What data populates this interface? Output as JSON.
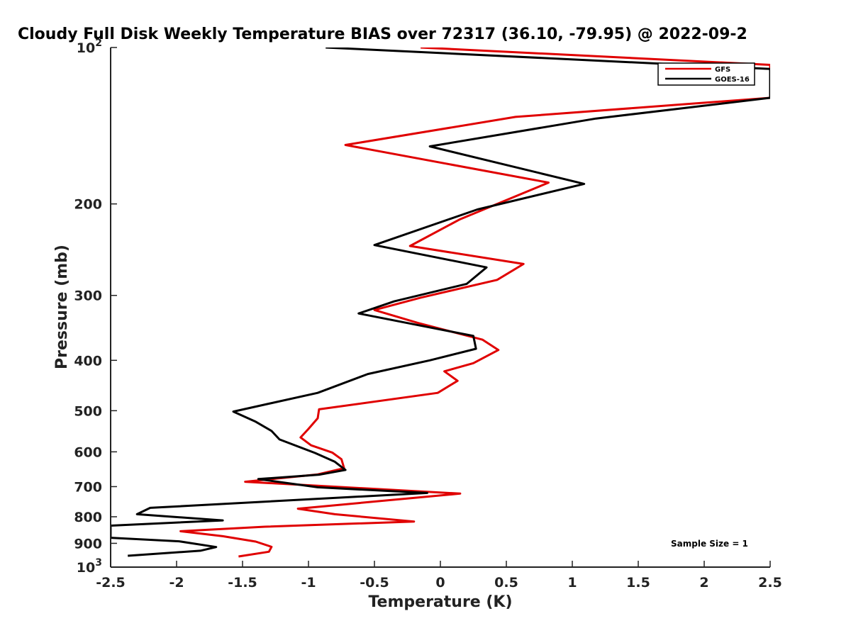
{
  "chart_data": {
    "type": "line",
    "title": "Cloudy Full Disk Weekly Temperature BIAS over 72317 (36.10, -79.95) @ 2022-09-2",
    "xlabel": "Temperature (K)",
    "ylabel": "Pressure (mb)",
    "xlim": [
      -2.5,
      2.5
    ],
    "ylim": [
      100,
      1000
    ],
    "yscale": "log",
    "yreversed": true,
    "grid": false,
    "x_ticks": [
      "-2.5",
      "-2",
      "-1.5",
      "-1",
      "-0.5",
      "0",
      "0.5",
      "1",
      "1.5",
      "2",
      "2.5"
    ],
    "y_ticks": [
      {
        "value": 100,
        "base": "10",
        "exp": "2"
      },
      {
        "value": 200,
        "label": "200"
      },
      {
        "value": 300,
        "label": "300"
      },
      {
        "value": 400,
        "label": "400"
      },
      {
        "value": 500,
        "label": "500"
      },
      {
        "value": 600,
        "label": "600"
      },
      {
        "value": 700,
        "label": "700"
      },
      {
        "value": 800,
        "label": "800"
      },
      {
        "value": 900,
        "label": "900"
      },
      {
        "value": 1000,
        "base": "10",
        "exp": "3"
      }
    ],
    "legend_position": "top-right",
    "series": [
      {
        "name": "GFS",
        "color": "#e00000",
        "points": [
          [
            -0.15,
            100
          ],
          [
            2.5,
            108
          ],
          [
            2.5,
            125
          ],
          [
            0.57,
            136
          ],
          [
            -0.72,
            154
          ],
          [
            0.82,
            182
          ],
          [
            0.15,
            214
          ],
          [
            -0.23,
            241
          ],
          [
            0.63,
            261
          ],
          [
            0.43,
            280
          ],
          [
            -0.15,
            303
          ],
          [
            -0.5,
            320
          ],
          [
            -0.17,
            339
          ],
          [
            0.32,
            365
          ],
          [
            0.44,
            382
          ],
          [
            0.25,
            405
          ],
          [
            0.03,
            420
          ],
          [
            0.13,
            438
          ],
          [
            -0.02,
            462
          ],
          [
            -0.92,
            497
          ],
          [
            -0.93,
            517
          ],
          [
            -1.0,
            542
          ],
          [
            -1.06,
            563
          ],
          [
            -0.98,
            583
          ],
          [
            -0.82,
            602
          ],
          [
            -0.75,
            620
          ],
          [
            -0.73,
            645
          ],
          [
            -0.93,
            663
          ],
          [
            -1.48,
            685
          ],
          [
            0.15,
            722
          ],
          [
            -1.08,
            772
          ],
          [
            -0.8,
            791
          ],
          [
            -0.2,
            817
          ],
          [
            -1.33,
            836
          ],
          [
            -1.97,
            853
          ],
          [
            -1.65,
            872
          ],
          [
            -1.4,
            893
          ],
          [
            -1.28,
            914
          ],
          [
            -1.3,
            934
          ],
          [
            -1.53,
            954
          ]
        ]
      },
      {
        "name": "GOES-16",
        "color": "#000000",
        "points": [
          [
            -0.87,
            100
          ],
          [
            2.5,
            110
          ],
          [
            2.5,
            125
          ],
          [
            1.18,
            137
          ],
          [
            -0.08,
            155
          ],
          [
            1.09,
            183
          ],
          [
            0.28,
            205
          ],
          [
            -0.5,
            240
          ],
          [
            0.35,
            265
          ],
          [
            0.2,
            285
          ],
          [
            -0.35,
            308
          ],
          [
            -0.62,
            325
          ],
          [
            0.25,
            359
          ],
          [
            0.27,
            380
          ],
          [
            -0.08,
            400
          ],
          [
            -0.55,
            425
          ],
          [
            -0.93,
            462
          ],
          [
            -1.57,
            502
          ],
          [
            -1.4,
            525
          ],
          [
            -1.28,
            547
          ],
          [
            -1.22,
            568
          ],
          [
            -0.95,
            603
          ],
          [
            -0.8,
            627
          ],
          [
            -0.72,
            650
          ],
          [
            -0.92,
            664
          ],
          [
            -1.38,
            677
          ],
          [
            -0.93,
            702
          ],
          [
            -0.1,
            720
          ],
          [
            -2.2,
            769
          ],
          [
            -2.3,
            791
          ],
          [
            -1.65,
            813
          ],
          [
            -2.5,
            832
          ],
          [
            -2.5,
            878
          ],
          [
            -1.98,
            892
          ],
          [
            -1.7,
            915
          ],
          [
            -1.82,
            930
          ],
          [
            -2.37,
            951
          ]
        ]
      }
    ],
    "annotation": "Sample Size = 1"
  }
}
